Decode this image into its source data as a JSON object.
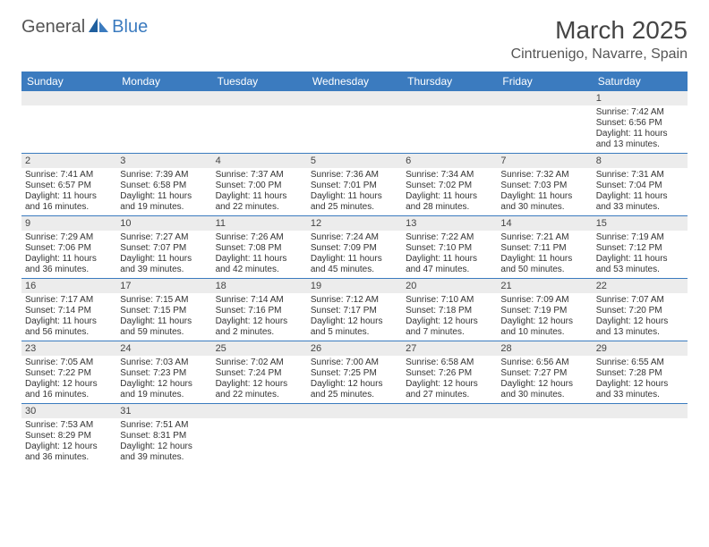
{
  "header": {
    "logo_text_a": "General",
    "logo_text_b": "Blue",
    "month_title": "March 2025",
    "location": "Cintruenigo, Navarre, Spain"
  },
  "colors": {
    "header_bg": "#3b7bbf",
    "row_stripe": "#ececec",
    "border": "#3b7bbf",
    "text": "#333333"
  },
  "day_headers": [
    "Sunday",
    "Monday",
    "Tuesday",
    "Wednesday",
    "Thursday",
    "Friday",
    "Saturday"
  ],
  "weeks": [
    [
      null,
      null,
      null,
      null,
      null,
      null,
      {
        "n": "1",
        "sr": "Sunrise: 7:42 AM",
        "ss": "Sunset: 6:56 PM",
        "dl1": "Daylight: 11 hours",
        "dl2": "and 13 minutes."
      }
    ],
    [
      {
        "n": "2",
        "sr": "Sunrise: 7:41 AM",
        "ss": "Sunset: 6:57 PM",
        "dl1": "Daylight: 11 hours",
        "dl2": "and 16 minutes."
      },
      {
        "n": "3",
        "sr": "Sunrise: 7:39 AM",
        "ss": "Sunset: 6:58 PM",
        "dl1": "Daylight: 11 hours",
        "dl2": "and 19 minutes."
      },
      {
        "n": "4",
        "sr": "Sunrise: 7:37 AM",
        "ss": "Sunset: 7:00 PM",
        "dl1": "Daylight: 11 hours",
        "dl2": "and 22 minutes."
      },
      {
        "n": "5",
        "sr": "Sunrise: 7:36 AM",
        "ss": "Sunset: 7:01 PM",
        "dl1": "Daylight: 11 hours",
        "dl2": "and 25 minutes."
      },
      {
        "n": "6",
        "sr": "Sunrise: 7:34 AM",
        "ss": "Sunset: 7:02 PM",
        "dl1": "Daylight: 11 hours",
        "dl2": "and 28 minutes."
      },
      {
        "n": "7",
        "sr": "Sunrise: 7:32 AM",
        "ss": "Sunset: 7:03 PM",
        "dl1": "Daylight: 11 hours",
        "dl2": "and 30 minutes."
      },
      {
        "n": "8",
        "sr": "Sunrise: 7:31 AM",
        "ss": "Sunset: 7:04 PM",
        "dl1": "Daylight: 11 hours",
        "dl2": "and 33 minutes."
      }
    ],
    [
      {
        "n": "9",
        "sr": "Sunrise: 7:29 AM",
        "ss": "Sunset: 7:06 PM",
        "dl1": "Daylight: 11 hours",
        "dl2": "and 36 minutes."
      },
      {
        "n": "10",
        "sr": "Sunrise: 7:27 AM",
        "ss": "Sunset: 7:07 PM",
        "dl1": "Daylight: 11 hours",
        "dl2": "and 39 minutes."
      },
      {
        "n": "11",
        "sr": "Sunrise: 7:26 AM",
        "ss": "Sunset: 7:08 PM",
        "dl1": "Daylight: 11 hours",
        "dl2": "and 42 minutes."
      },
      {
        "n": "12",
        "sr": "Sunrise: 7:24 AM",
        "ss": "Sunset: 7:09 PM",
        "dl1": "Daylight: 11 hours",
        "dl2": "and 45 minutes."
      },
      {
        "n": "13",
        "sr": "Sunrise: 7:22 AM",
        "ss": "Sunset: 7:10 PM",
        "dl1": "Daylight: 11 hours",
        "dl2": "and 47 minutes."
      },
      {
        "n": "14",
        "sr": "Sunrise: 7:21 AM",
        "ss": "Sunset: 7:11 PM",
        "dl1": "Daylight: 11 hours",
        "dl2": "and 50 minutes."
      },
      {
        "n": "15",
        "sr": "Sunrise: 7:19 AM",
        "ss": "Sunset: 7:12 PM",
        "dl1": "Daylight: 11 hours",
        "dl2": "and 53 minutes."
      }
    ],
    [
      {
        "n": "16",
        "sr": "Sunrise: 7:17 AM",
        "ss": "Sunset: 7:14 PM",
        "dl1": "Daylight: 11 hours",
        "dl2": "and 56 minutes."
      },
      {
        "n": "17",
        "sr": "Sunrise: 7:15 AM",
        "ss": "Sunset: 7:15 PM",
        "dl1": "Daylight: 11 hours",
        "dl2": "and 59 minutes."
      },
      {
        "n": "18",
        "sr": "Sunrise: 7:14 AM",
        "ss": "Sunset: 7:16 PM",
        "dl1": "Daylight: 12 hours",
        "dl2": "and 2 minutes."
      },
      {
        "n": "19",
        "sr": "Sunrise: 7:12 AM",
        "ss": "Sunset: 7:17 PM",
        "dl1": "Daylight: 12 hours",
        "dl2": "and 5 minutes."
      },
      {
        "n": "20",
        "sr": "Sunrise: 7:10 AM",
        "ss": "Sunset: 7:18 PM",
        "dl1": "Daylight: 12 hours",
        "dl2": "and 7 minutes."
      },
      {
        "n": "21",
        "sr": "Sunrise: 7:09 AM",
        "ss": "Sunset: 7:19 PM",
        "dl1": "Daylight: 12 hours",
        "dl2": "and 10 minutes."
      },
      {
        "n": "22",
        "sr": "Sunrise: 7:07 AM",
        "ss": "Sunset: 7:20 PM",
        "dl1": "Daylight: 12 hours",
        "dl2": "and 13 minutes."
      }
    ],
    [
      {
        "n": "23",
        "sr": "Sunrise: 7:05 AM",
        "ss": "Sunset: 7:22 PM",
        "dl1": "Daylight: 12 hours",
        "dl2": "and 16 minutes."
      },
      {
        "n": "24",
        "sr": "Sunrise: 7:03 AM",
        "ss": "Sunset: 7:23 PM",
        "dl1": "Daylight: 12 hours",
        "dl2": "and 19 minutes."
      },
      {
        "n": "25",
        "sr": "Sunrise: 7:02 AM",
        "ss": "Sunset: 7:24 PM",
        "dl1": "Daylight: 12 hours",
        "dl2": "and 22 minutes."
      },
      {
        "n": "26",
        "sr": "Sunrise: 7:00 AM",
        "ss": "Sunset: 7:25 PM",
        "dl1": "Daylight: 12 hours",
        "dl2": "and 25 minutes."
      },
      {
        "n": "27",
        "sr": "Sunrise: 6:58 AM",
        "ss": "Sunset: 7:26 PM",
        "dl1": "Daylight: 12 hours",
        "dl2": "and 27 minutes."
      },
      {
        "n": "28",
        "sr": "Sunrise: 6:56 AM",
        "ss": "Sunset: 7:27 PM",
        "dl1": "Daylight: 12 hours",
        "dl2": "and 30 minutes."
      },
      {
        "n": "29",
        "sr": "Sunrise: 6:55 AM",
        "ss": "Sunset: 7:28 PM",
        "dl1": "Daylight: 12 hours",
        "dl2": "and 33 minutes."
      }
    ],
    [
      {
        "n": "30",
        "sr": "Sunrise: 7:53 AM",
        "ss": "Sunset: 8:29 PM",
        "dl1": "Daylight: 12 hours",
        "dl2": "and 36 minutes."
      },
      {
        "n": "31",
        "sr": "Sunrise: 7:51 AM",
        "ss": "Sunset: 8:31 PM",
        "dl1": "Daylight: 12 hours",
        "dl2": "and 39 minutes."
      },
      null,
      null,
      null,
      null,
      null
    ]
  ]
}
